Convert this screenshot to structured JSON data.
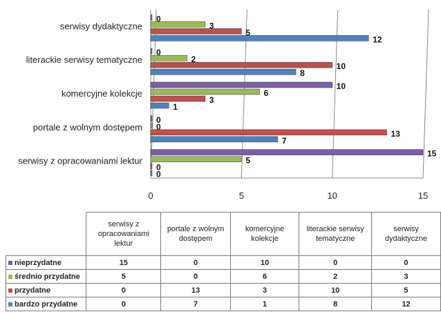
{
  "chart_data": {
    "type": "bar",
    "orientation": "horizontal",
    "categories": [
      "serwisy z opracowaniami lektur",
      "portale z wolnym dostępem",
      "komercyjne kolekcje",
      "literackie serwisy tematyczne",
      "serwisy dydaktyczne"
    ],
    "series": [
      {
        "name": "nieprzydatne",
        "color": "#7b5ea7",
        "values": [
          15,
          0,
          10,
          0,
          0
        ]
      },
      {
        "name": "średnio przydatne",
        "color": "#9bbb59",
        "values": [
          5,
          0,
          6,
          2,
          3
        ]
      },
      {
        "name": "przydatne",
        "color": "#c0504d",
        "values": [
          0,
          13,
          3,
          10,
          5
        ]
      },
      {
        "name": "bardzo przydatne",
        "color": "#4f81bd",
        "values": [
          0,
          7,
          1,
          8,
          12
        ]
      }
    ],
    "xlim": [
      0,
      15
    ],
    "xticks": [
      "0",
      "5",
      "10",
      "15"
    ],
    "grid": true,
    "legend": "data-table below chart"
  }
}
